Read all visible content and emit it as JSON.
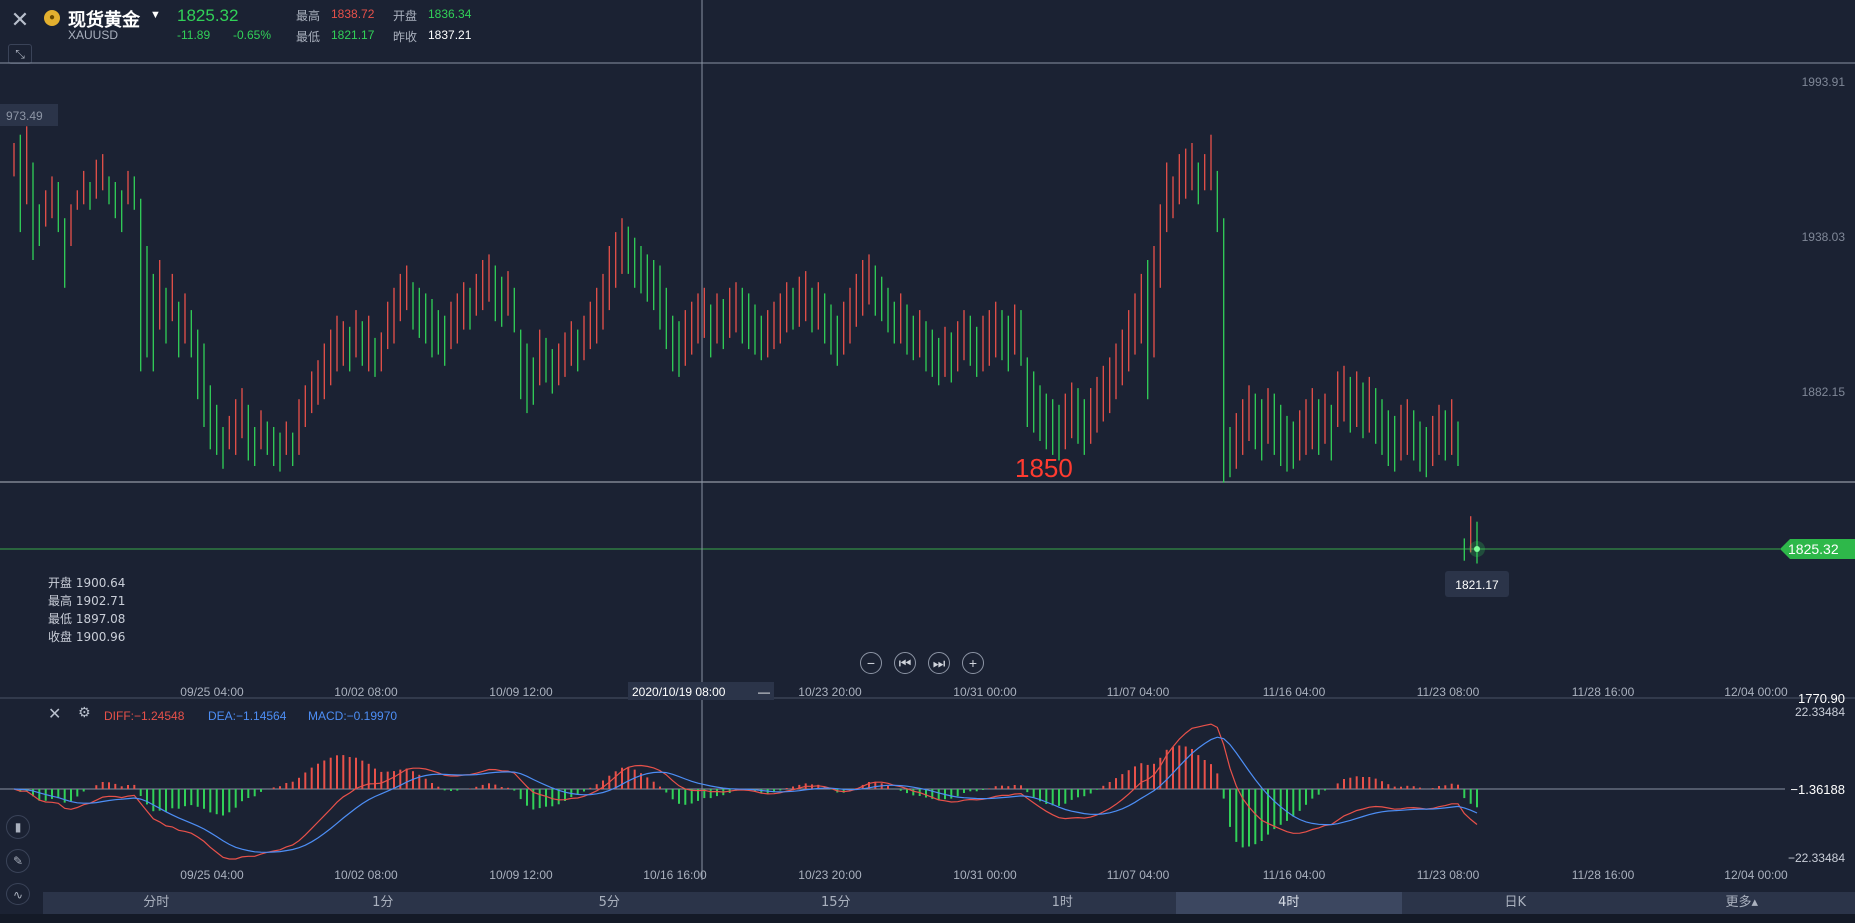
{
  "header": {
    "symbol_name": "现货黄金",
    "symbol_code": "XAUUSD",
    "last_price": "1825.32",
    "change": "-11.89",
    "change_pct": "-0.65%",
    "high_label": "最高",
    "high_value": "1838.72",
    "open_label": "开盘",
    "open_value": "1836.34",
    "low_label": "最低",
    "low_value": "1821.17",
    "prev_close_label": "昨收",
    "prev_close_value": "1837.21"
  },
  "ohlc_tooltip": {
    "open": "开盘 1900.64",
    "high": "最高 1902.71",
    "low": "最低 1897.08",
    "close": "收盘 1900.96"
  },
  "main_chart": {
    "price_axis_labels": [
      "1993.91",
      "1938.03",
      "1882.15"
    ],
    "left_crosshair_label": "973.49",
    "annotation_text": "1850",
    "current_price_tag": "1825.32",
    "low_marker_label": "1821.17",
    "bottom_axis_edge_label": "1770.90",
    "time_labels": [
      "09/25 04:00",
      "10/02 08:00",
      "10/09 12:00",
      "10/23 20:00",
      "10/31 00:00",
      "11/07 04:00",
      "11/16 04:00",
      "11/23 08:00",
      "11/28 16:00",
      "12/04 00:00"
    ],
    "crosshair_time_label": "2020/10/19 08:00",
    "colors": {
      "up": "#e8514a",
      "down": "#31d158",
      "grid_line": "#8a93a3",
      "annotation": "#ff3b30"
    }
  },
  "chart_data": {
    "type": "candlestick",
    "ylim": [
      1770.9,
      1993.91
    ],
    "candles_hl": [
      [
        1972,
        1960
      ],
      [
        1975,
        1940
      ],
      [
        1978,
        1950
      ],
      [
        1965,
        1930
      ],
      [
        1950,
        1935
      ],
      [
        1955,
        1942
      ],
      [
        1960,
        1945
      ],
      [
        1958,
        1940
      ],
      [
        1945,
        1920
      ],
      [
        1950,
        1935
      ],
      [
        1955,
        1948
      ],
      [
        1962,
        1950
      ],
      [
        1958,
        1948
      ],
      [
        1966,
        1952
      ],
      [
        1968,
        1955
      ],
      [
        1960,
        1950
      ],
      [
        1958,
        1945
      ],
      [
        1955,
        1940
      ],
      [
        1962,
        1950
      ],
      [
        1960,
        1948
      ],
      [
        1952,
        1890
      ],
      [
        1935,
        1895
      ],
      [
        1925,
        1890
      ],
      [
        1930,
        1905
      ],
      [
        1920,
        1900
      ],
      [
        1925,
        1908
      ],
      [
        1915,
        1895
      ],
      [
        1918,
        1900
      ],
      [
        1912,
        1895
      ],
      [
        1905,
        1880
      ],
      [
        1900,
        1870
      ],
      [
        1885,
        1862
      ],
      [
        1878,
        1860
      ],
      [
        1870,
        1855
      ],
      [
        1874,
        1862
      ],
      [
        1880,
        1860
      ],
      [
        1884,
        1866
      ],
      [
        1878,
        1858
      ],
      [
        1870,
        1856
      ],
      [
        1876,
        1862
      ],
      [
        1872,
        1860
      ],
      [
        1870,
        1856
      ],
      [
        1868,
        1854
      ],
      [
        1872,
        1860
      ],
      [
        1868,
        1856
      ],
      [
        1880,
        1860
      ],
      [
        1885,
        1870
      ],
      [
        1890,
        1875
      ],
      [
        1894,
        1878
      ],
      [
        1900,
        1880
      ],
      [
        1905,
        1885
      ],
      [
        1910,
        1890
      ],
      [
        1908,
        1892
      ],
      [
        1906,
        1890
      ],
      [
        1912,
        1895
      ],
      [
        1908,
        1892
      ],
      [
        1910,
        1890
      ],
      [
        1902,
        1888
      ],
      [
        1904,
        1890
      ],
      [
        1915,
        1898
      ],
      [
        1920,
        1900
      ],
      [
        1925,
        1908
      ],
      [
        1928,
        1912
      ],
      [
        1922,
        1905
      ],
      [
        1920,
        1902
      ],
      [
        1918,
        1900
      ],
      [
        1916,
        1895
      ],
      [
        1912,
        1896
      ],
      [
        1910,
        1892
      ],
      [
        1915,
        1898
      ],
      [
        1918,
        1900
      ],
      [
        1922,
        1905
      ],
      [
        1920,
        1905
      ],
      [
        1925,
        1910
      ],
      [
        1930,
        1912
      ],
      [
        1932,
        1915
      ],
      [
        1928,
        1908
      ],
      [
        1924,
        1906
      ],
      [
        1926,
        1910
      ],
      [
        1920,
        1904
      ],
      [
        1905,
        1880
      ],
      [
        1900,
        1875
      ],
      [
        1895,
        1878
      ],
      [
        1905,
        1885
      ],
      [
        1902,
        1886
      ],
      [
        1898,
        1882
      ],
      [
        1900,
        1885
      ],
      [
        1904,
        1888
      ],
      [
        1908,
        1892
      ],
      [
        1905,
        1890
      ],
      [
        1910,
        1894
      ],
      [
        1915,
        1898
      ],
      [
        1920,
        1900
      ],
      [
        1925,
        1905
      ],
      [
        1935,
        1912
      ],
      [
        1940,
        1920
      ],
      [
        1945,
        1925
      ],
      [
        1942,
        1925
      ],
      [
        1938,
        1920
      ],
      [
        1935,
        1918
      ],
      [
        1932,
        1915
      ],
      [
        1930,
        1912
      ],
      [
        1928,
        1905
      ],
      [
        1920,
        1898
      ],
      [
        1910,
        1890
      ],
      [
        1908,
        1888
      ],
      [
        1912,
        1892
      ],
      [
        1915,
        1896
      ],
      [
        1918,
        1900
      ],
      [
        1920,
        1902
      ],
      [
        1914,
        1895
      ],
      [
        1918,
        1900
      ],
      [
        1916,
        1898
      ],
      [
        1920,
        1902
      ],
      [
        1922,
        1904
      ],
      [
        1920,
        1900
      ],
      [
        1918,
        1898
      ],
      [
        1914,
        1896
      ],
      [
        1910,
        1894
      ],
      [
        1912,
        1895
      ],
      [
        1915,
        1898
      ],
      [
        1918,
        1900
      ],
      [
        1922,
        1904
      ],
      [
        1920,
        1905
      ],
      [
        1924,
        1906
      ],
      [
        1926,
        1908
      ],
      [
        1920,
        1904
      ],
      [
        1922,
        1905
      ],
      [
        1918,
        1900
      ],
      [
        1914,
        1896
      ],
      [
        1910,
        1892
      ],
      [
        1915,
        1896
      ],
      [
        1920,
        1900
      ],
      [
        1925,
        1906
      ],
      [
        1930,
        1910
      ],
      [
        1932,
        1914
      ],
      [
        1928,
        1910
      ],
      [
        1924,
        1908
      ],
      [
        1920,
        1904
      ],
      [
        1915,
        1900
      ],
      [
        1918,
        1900
      ],
      [
        1914,
        1896
      ],
      [
        1910,
        1894
      ],
      [
        1912,
        1895
      ],
      [
        1908,
        1890
      ],
      [
        1905,
        1888
      ],
      [
        1902,
        1885
      ],
      [
        1906,
        1888
      ],
      [
        1904,
        1886
      ],
      [
        1908,
        1890
      ],
      [
        1912,
        1894
      ],
      [
        1910,
        1892
      ],
      [
        1906,
        1888
      ],
      [
        1910,
        1890
      ],
      [
        1912,
        1892
      ],
      [
        1915,
        1895
      ],
      [
        1912,
        1894
      ],
      [
        1910,
        1890
      ],
      [
        1914,
        1896
      ],
      [
        1912,
        1892
      ],
      [
        1895,
        1870
      ],
      [
        1890,
        1868
      ],
      [
        1885,
        1865
      ],
      [
        1882,
        1862
      ],
      [
        1880,
        1860
      ],
      [
        1878,
        1858
      ],
      [
        1882,
        1862
      ],
      [
        1886,
        1866
      ],
      [
        1884,
        1864
      ],
      [
        1880,
        1860
      ],
      [
        1884,
        1864
      ],
      [
        1888,
        1868
      ],
      [
        1892,
        1872
      ],
      [
        1895,
        1875
      ],
      [
        1900,
        1880
      ],
      [
        1905,
        1885
      ],
      [
        1912,
        1890
      ],
      [
        1918,
        1896
      ],
      [
        1925,
        1900
      ],
      [
        1930,
        1880
      ],
      [
        1935,
        1895
      ],
      [
        1950,
        1920
      ],
      [
        1965,
        1940
      ],
      [
        1960,
        1945
      ],
      [
        1968,
        1950
      ],
      [
        1970,
        1952
      ],
      [
        1972,
        1955
      ],
      [
        1965,
        1950
      ],
      [
        1968,
        1955
      ],
      [
        1975,
        1955
      ],
      [
        1962,
        1940
      ],
      [
        1945,
        1850
      ],
      [
        1870,
        1852
      ],
      [
        1875,
        1855
      ],
      [
        1880,
        1860
      ],
      [
        1885,
        1865
      ],
      [
        1882,
        1862
      ],
      [
        1880,
        1858
      ],
      [
        1884,
        1864
      ],
      [
        1882,
        1860
      ],
      [
        1878,
        1856
      ],
      [
        1874,
        1854
      ],
      [
        1872,
        1855
      ],
      [
        1876,
        1858
      ],
      [
        1880,
        1860
      ],
      [
        1884,
        1862
      ],
      [
        1880,
        1860
      ],
      [
        1882,
        1864
      ],
      [
        1878,
        1858
      ],
      [
        1890,
        1870
      ],
      [
        1892,
        1872
      ],
      [
        1888,
        1868
      ],
      [
        1890,
        1870
      ],
      [
        1886,
        1866
      ],
      [
        1888,
        1868
      ],
      [
        1884,
        1864
      ],
      [
        1880,
        1860
      ],
      [
        1876,
        1856
      ],
      [
        1874,
        1854
      ],
      [
        1878,
        1858
      ],
      [
        1880,
        1860
      ],
      [
        1876,
        1858
      ],
      [
        1872,
        1854
      ],
      [
        1870,
        1852
      ],
      [
        1874,
        1856
      ],
      [
        1878,
        1860
      ],
      [
        1876,
        1858
      ],
      [
        1880,
        1860
      ],
      [
        1872,
        1856
      ],
      [
        1830,
        1822
      ],
      [
        1838,
        1825
      ],
      [
        1836,
        1821
      ]
    ]
  },
  "macd": {
    "diff": "DIFF:−1.24548",
    "dea": "DEA:−1.14564",
    "macd": "MACD:−0.19970",
    "axis_top": "22.33484",
    "axis_mid": "−1.36188",
    "axis_bottom": "−22.33484",
    "time_labels": [
      "09/25 04:00",
      "10/02 08:00",
      "10/09 12:00",
      "10/16 16:00",
      "10/23 20:00",
      "10/31 00:00",
      "11/07 04:00",
      "11/16 04:00",
      "11/23 08:00",
      "11/28 16:00",
      "12/04 00:00"
    ],
    "colors": {
      "diff": "#e8514a",
      "dea": "#4d8ef5",
      "hist_up": "#e8514a",
      "hist_down": "#31d158"
    }
  },
  "timeframes": [
    "分时",
    "1分",
    "5分",
    "15分",
    "1时",
    "4时",
    "日K",
    "更多▴"
  ],
  "active_timeframe": "4时"
}
